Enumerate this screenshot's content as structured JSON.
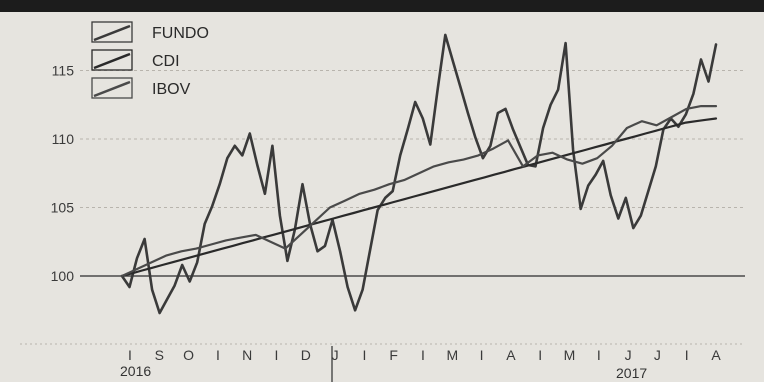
{
  "chart_data": {
    "type": "line",
    "title": "",
    "xlabel": "",
    "ylabel": "",
    "ylim": [
      97,
      118
    ],
    "yticks": [
      100,
      105,
      110,
      115
    ],
    "grid": true,
    "legend_position": "top-left",
    "month_ticks": [
      "I",
      "S",
      "O",
      "N",
      "D",
      "J",
      "F",
      "M",
      "A",
      "M",
      "J",
      "J",
      "A"
    ],
    "month_labels": [
      "I",
      "S",
      "O",
      "I",
      "N",
      "I",
      "D",
      "J",
      "I",
      "F",
      "I",
      "M",
      "I",
      "A",
      "I",
      "M",
      "I",
      "J",
      "J",
      "I",
      "A"
    ],
    "year_labels": [
      "2016",
      "2017"
    ],
    "series": [
      {
        "name": "FUNDO",
        "color": "#3a3a3a",
        "values": [
          100.0,
          99.2,
          101.3,
          102.7,
          99.0,
          97.3,
          98.3,
          99.3,
          100.8,
          99.6,
          101.0,
          103.8,
          105.1,
          106.7,
          108.6,
          109.5,
          108.8,
          110.4,
          108.1,
          106.0,
          109.5,
          104.4,
          101.1,
          103.4,
          106.7,
          103.8,
          101.8,
          102.2,
          104.1,
          101.8,
          99.2,
          97.5,
          99.0,
          101.9,
          104.8,
          105.7,
          106.2,
          108.8,
          110.7,
          112.7,
          111.5,
          109.6,
          113.7,
          117.6,
          115.7,
          113.8,
          111.9,
          110.1,
          108.6,
          109.5,
          111.9,
          112.2,
          110.7,
          109.4,
          108.1,
          108.0,
          110.8,
          112.5,
          113.6,
          117.0,
          109.2,
          104.9,
          106.6,
          107.4,
          108.4,
          105.9,
          104.2,
          105.7,
          103.5,
          104.4,
          106.2,
          108.0,
          110.7,
          111.5,
          110.9,
          111.8,
          113.3,
          115.8,
          114.2,
          116.9
        ]
      },
      {
        "name": "CDI",
        "color": "#2a2a2a",
        "values": [
          100.0,
          100.2,
          100.4,
          100.6,
          100.8,
          101.0,
          101.2,
          101.4,
          101.6,
          101.8,
          102.0,
          102.2,
          102.4,
          102.6,
          102.8,
          103.0,
          103.2,
          103.4,
          103.6,
          103.8,
          104.0,
          104.2,
          104.4,
          104.6,
          104.8,
          105.0,
          105.2,
          105.4,
          105.6,
          105.8,
          106.0,
          106.2,
          106.4,
          106.6,
          106.8,
          107.0,
          107.2,
          107.4,
          107.6,
          107.8,
          108.0,
          108.2,
          108.4,
          108.6,
          108.8,
          109.0,
          109.2,
          109.4,
          109.6,
          109.8,
          110.0,
          110.2,
          110.4,
          110.6,
          110.8,
          111.0,
          111.2,
          111.3,
          111.4,
          111.5
        ]
      },
      {
        "name": "IBOV",
        "color": "#4a4a4a",
        "values": [
          100.0,
          100.5,
          101.0,
          101.5,
          101.8,
          102.0,
          102.3,
          102.6,
          102.8,
          103.0,
          102.5,
          102.0,
          103.0,
          104.0,
          105.0,
          105.5,
          106.0,
          106.3,
          106.7,
          107.0,
          107.5,
          108.0,
          108.3,
          108.5,
          108.8,
          109.3,
          109.9,
          108.0,
          108.8,
          109.0,
          108.5,
          108.2,
          108.6,
          109.5,
          110.8,
          111.3,
          111.0,
          111.6,
          112.2,
          112.4,
          112.4
        ]
      }
    ]
  }
}
